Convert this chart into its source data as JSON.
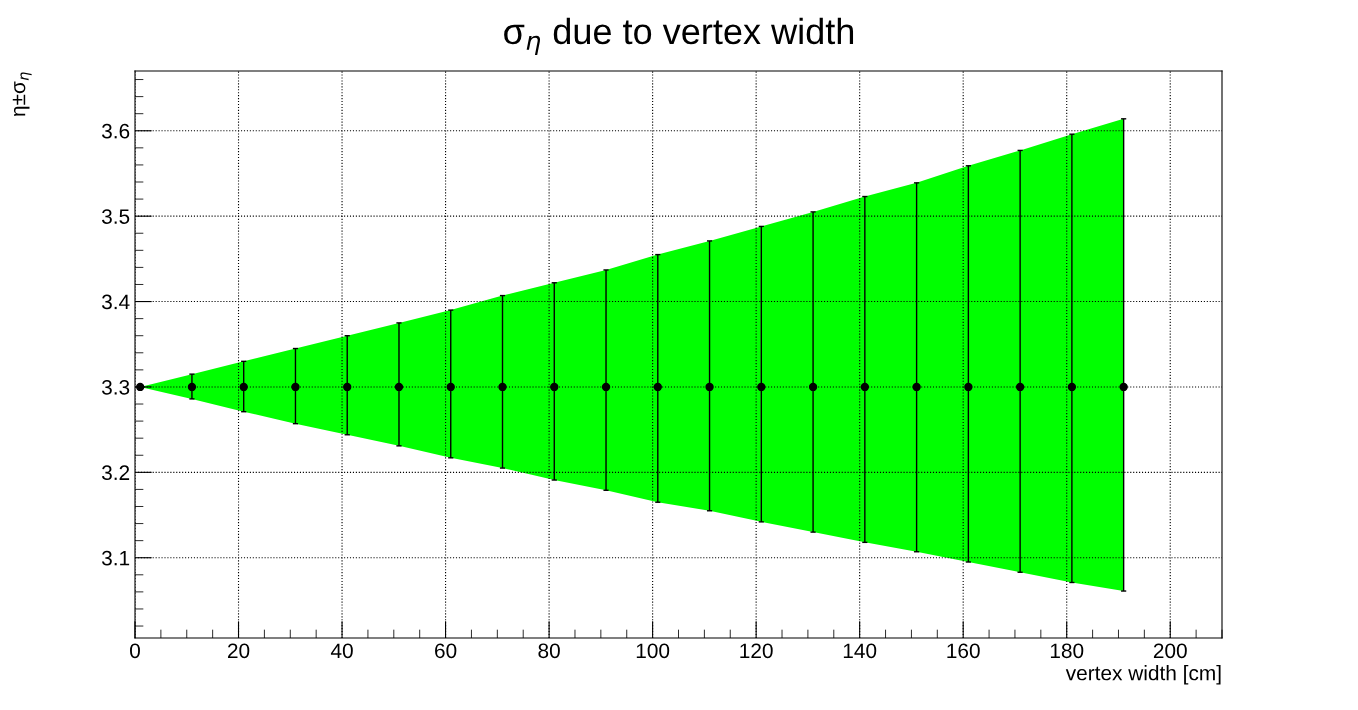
{
  "chart_data": {
    "type": "scatter",
    "title": "σ$_{η}$ due to vertex width",
    "xlabel": "vertex width [cm]",
    "ylabel": "η±σ$_{η}$",
    "x": [
      1,
      11,
      21,
      31,
      41,
      51,
      61,
      71,
      81,
      91,
      101,
      111,
      121,
      131,
      141,
      151,
      161,
      171,
      181,
      191
    ],
    "series": [
      {
        "type": "area",
        "color": "#00ff00",
        "values": [
          null,
          null,
          null,
          null,
          null,
          null,
          null,
          null,
          null,
          null,
          null,
          null,
          null,
          null,
          null,
          null,
          null,
          null,
          null,
          null
        ],
        "upper": [
          3.3,
          3.315,
          3.33,
          3.345,
          3.36,
          3.375,
          3.39,
          3.407,
          3.422,
          3.437,
          3.455,
          3.471,
          3.488,
          3.505,
          3.523,
          3.539,
          3.559,
          3.577,
          3.596,
          3.614
        ],
        "lower": [
          3.3,
          3.286,
          3.271,
          3.257,
          3.244,
          3.231,
          3.217,
          3.205,
          3.191,
          3.179,
          3.165,
          3.155,
          3.142,
          3.13,
          3.118,
          3.107,
          3.095,
          3.083,
          3.071,
          3.061
        ]
      },
      {
        "color": "#000000",
        "values": [
          3.3,
          3.3,
          3.3,
          3.3,
          3.3,
          3.3,
          3.3,
          3.3,
          3.3,
          3.3,
          3.3,
          3.3,
          3.3,
          3.3,
          3.3,
          3.3,
          3.3,
          3.3,
          3.3,
          3.3
        ],
        "errors": [
          null,
          [
            3.286,
            3.315
          ],
          [
            3.271,
            3.33
          ],
          [
            3.257,
            3.345
          ],
          [
            3.244,
            3.36
          ],
          [
            3.231,
            3.375
          ],
          [
            3.217,
            3.39
          ],
          [
            3.205,
            3.407
          ],
          [
            3.191,
            3.422
          ],
          [
            3.179,
            3.437
          ],
          [
            3.165,
            3.455
          ],
          [
            3.155,
            3.471
          ],
          [
            3.142,
            3.488
          ],
          [
            3.13,
            3.505
          ],
          [
            3.118,
            3.523
          ],
          [
            3.107,
            3.539
          ],
          [
            3.095,
            3.559
          ],
          [
            3.083,
            3.577
          ],
          [
            3.071,
            3.596
          ],
          [
            3.061,
            3.614
          ]
        ]
      }
    ],
    "xlim": [
      0,
      210
    ],
    "xticks": [
      0,
      20,
      40,
      60,
      80,
      100,
      120,
      140,
      160,
      180,
      200
    ],
    "ylim": [
      3.006,
      3.67
    ],
    "yticks": [
      3.1,
      3.2,
      3.3,
      3.4,
      3.5,
      3.6
    ],
    "grid": true,
    "marker": "circle"
  }
}
